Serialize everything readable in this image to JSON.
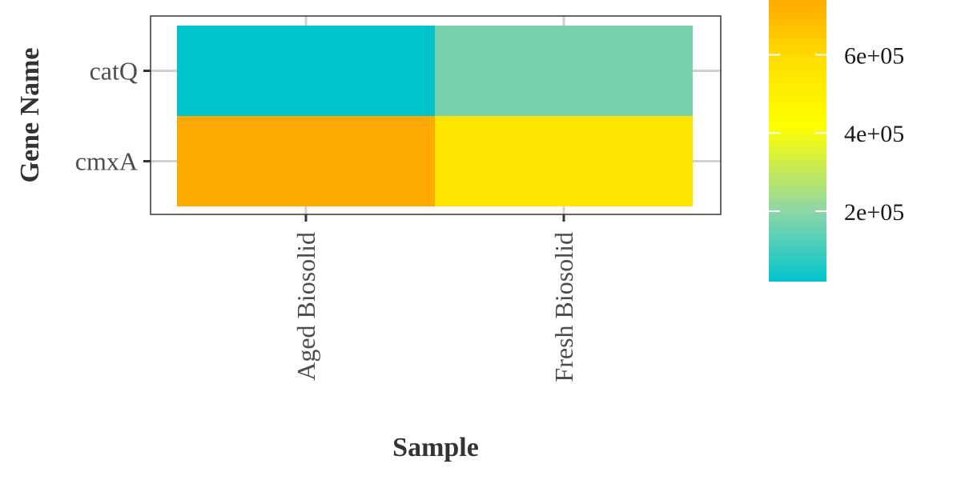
{
  "chart_data": {
    "type": "heatmap",
    "title": "",
    "xlabel": "Sample",
    "ylabel": "Gene Name",
    "x": [
      "Aged Biosolid",
      "Fresh Biosolid"
    ],
    "y": [
      "catQ",
      "cmxA"
    ],
    "values": [
      [
        20000,
        170000
      ],
      [
        740000,
        560000
      ]
    ],
    "grid": true,
    "legend": {
      "placement": "right",
      "range": [
        20000,
        740000
      ],
      "ticks": [
        200000,
        400000,
        600000
      ],
      "tick_labels": [
        "2e+05",
        "4e+05",
        "6e+05"
      ]
    },
    "colors": {
      "low": "#00C5CD",
      "mid_low": "#7AD0B0",
      "mid": "#FFFF00",
      "mid_high": "#FFE600",
      "high": "#FFAA00"
    }
  }
}
